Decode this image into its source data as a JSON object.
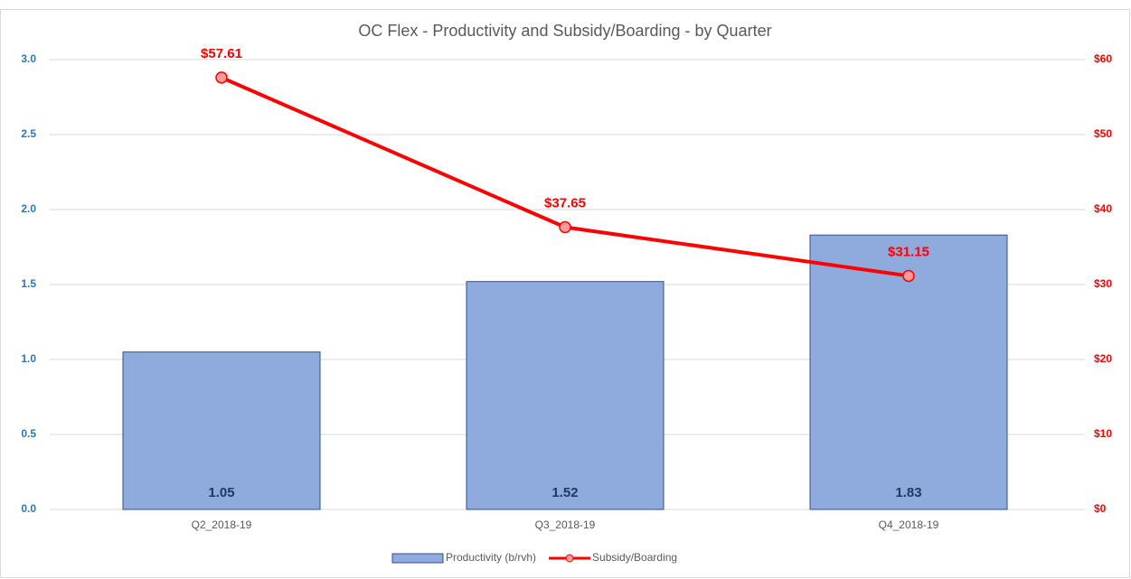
{
  "chart_data": {
    "type": "combo",
    "title": "OC Flex - Productivity and Subsidy/Boarding - by Quarter",
    "categories": [
      "Q2_2018-19",
      "Q3_2018-19",
      "Q4_2018-19"
    ],
    "series": [
      {
        "name": "Productivity (b/rvh)",
        "type": "bar",
        "color": "#8faadc",
        "values": [
          1.05,
          1.52,
          1.83
        ]
      },
      {
        "name": "Subsidy/Boarding",
        "type": "line",
        "axis": "y2",
        "color": "#ff0000",
        "values": [
          57.61,
          37.65,
          31.15
        ],
        "value_labels": [
          "$57.61",
          "$37.65",
          "$31.15"
        ]
      }
    ],
    "ylim": [
      0,
      3
    ],
    "yticks": [
      {
        "value": 0,
        "label": "0.0"
      },
      0.5,
      {
        "value": 1,
        "label": "1.0"
      },
      1.5,
      {
        "value": 2,
        "label": "2.0"
      },
      2.5,
      {
        "value": 3,
        "label": "3.0"
      }
    ],
    "y2lim": [
      0,
      60
    ],
    "y2ticks": [
      {
        "value": 0,
        "label": "$0"
      },
      {
        "value": 10,
        "label": "$10"
      },
      {
        "value": 20,
        "label": "$20"
      },
      {
        "value": 30,
        "label": "$30"
      },
      {
        "value": 40,
        "label": "$40"
      },
      {
        "value": 50,
        "label": "$50"
      },
      {
        "value": 60,
        "label": "$60"
      }
    ],
    "grid": true,
    "legend": "bottom"
  }
}
